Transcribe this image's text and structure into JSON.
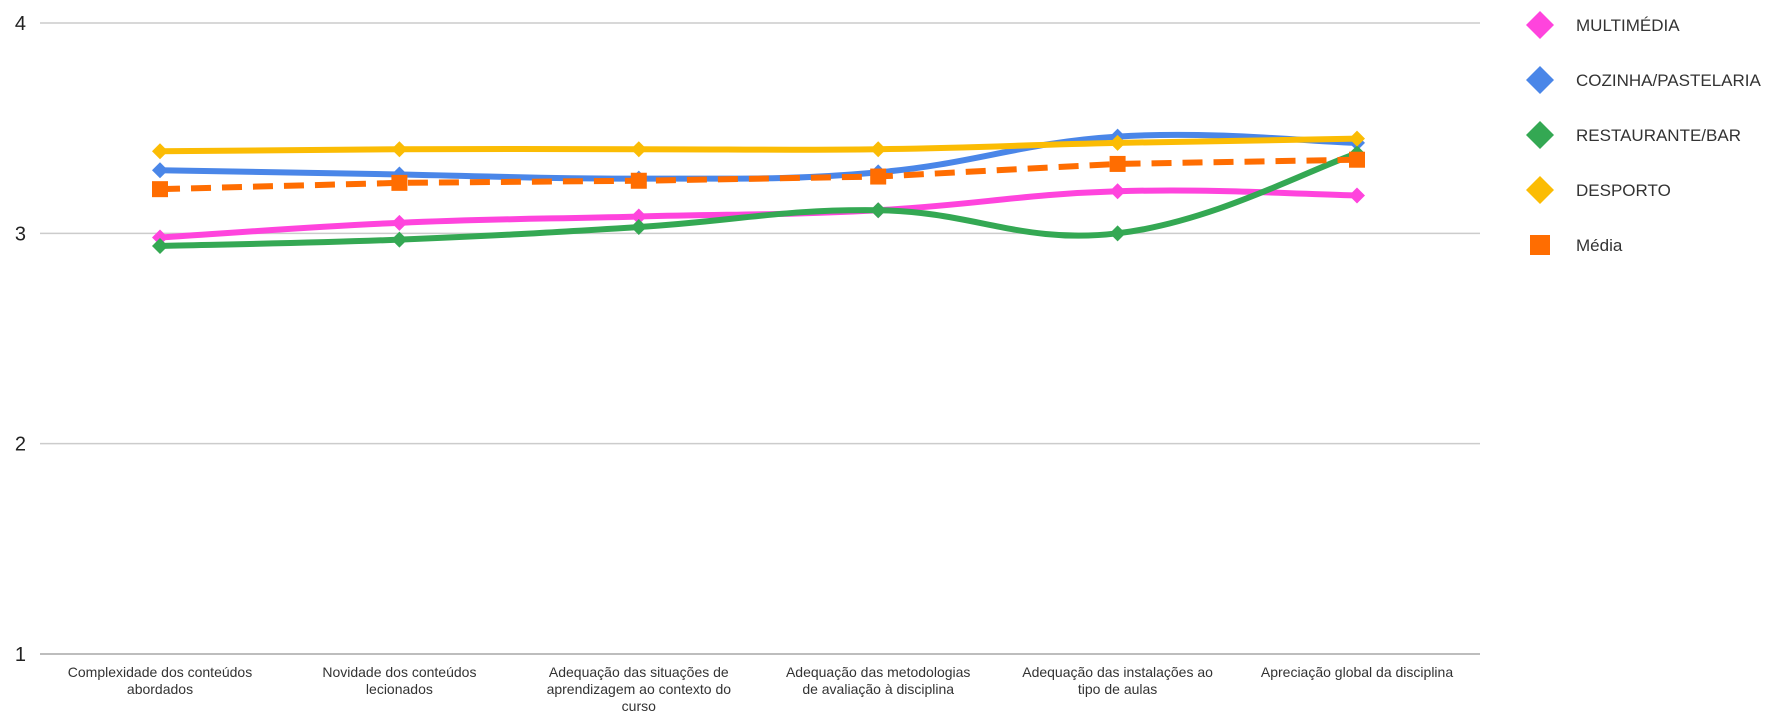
{
  "chart_data": {
    "type": "line",
    "title": "",
    "xlabel": "",
    "ylabel": "",
    "ylim": [
      1,
      4
    ],
    "y_ticks": [
      "1",
      "2",
      "3",
      "4"
    ],
    "grid": true,
    "legend_position": "right",
    "categories": [
      "Complexidade dos conteúdos abordados",
      "Novidade dos conteúdos lecionados",
      "Adequação das situações de aprendizagem ao contexto do curso",
      "Adequação das metodologias de avaliação à disciplina",
      "Adequação das instalações ao tipo de aulas",
      "Apreciação global da disciplina"
    ],
    "category_label_lines": [
      [
        "Complexidade dos conteúdos",
        "abordados"
      ],
      [
        "Novidade dos conteúdos",
        "lecionados"
      ],
      [
        "Adequação das situações de",
        "aprendizagem ao contexto do",
        "curso"
      ],
      [
        "Adequação das metodologias",
        "de avaliação à disciplina"
      ],
      [
        "Adequação das instalações ao",
        "tipo de aulas"
      ],
      [
        "Apreciação global da disciplina"
      ]
    ],
    "series": [
      {
        "name": "MULTIMÉDIA",
        "values": [
          2.98,
          3.05,
          3.08,
          3.11,
          3.2,
          3.18
        ],
        "color": "#ff44dd",
        "marker": "diamond",
        "dashed": false
      },
      {
        "name": "COZINHA/PASTELARIA",
        "values": [
          3.3,
          3.28,
          3.26,
          3.29,
          3.46,
          3.43
        ],
        "color": "#4a86e8",
        "marker": "diamond",
        "dashed": false
      },
      {
        "name": "RESTAURANTE/BAR",
        "values": [
          2.94,
          2.97,
          3.03,
          3.11,
          3.0,
          3.38
        ],
        "color": "#34a853",
        "marker": "diamond",
        "dashed": false
      },
      {
        "name": "DESPORTO",
        "values": [
          3.39,
          3.4,
          3.4,
          3.4,
          3.43,
          3.45
        ],
        "color": "#fbbc04",
        "marker": "diamond",
        "dashed": false
      },
      {
        "name": "Média",
        "values": [
          3.21,
          3.24,
          3.25,
          3.27,
          3.33,
          3.35
        ],
        "color": "#ff6d01",
        "marker": "square",
        "dashed": true
      }
    ]
  }
}
